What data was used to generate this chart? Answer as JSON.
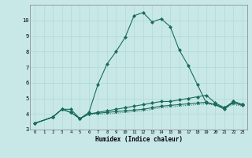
{
  "title": "",
  "xlabel": "Humidex (Indice chaleur)",
  "ylabel": "",
  "bg_color": "#c8e8e8",
  "line_color": "#1a6b5a",
  "grid_color": "#b0d8d8",
  "xlim": [
    -0.5,
    23.5
  ],
  "ylim": [
    3,
    11
  ],
  "yticks": [
    3,
    4,
    5,
    6,
    7,
    8,
    9,
    10
  ],
  "xticks": [
    0,
    1,
    2,
    3,
    4,
    5,
    6,
    7,
    8,
    9,
    10,
    11,
    12,
    13,
    14,
    15,
    16,
    17,
    18,
    19,
    20,
    21,
    22,
    23
  ],
  "series": [
    {
      "x": [
        0,
        2,
        3,
        4,
        5,
        6,
        7,
        8,
        9,
        10,
        11,
        12,
        13,
        14,
        15,
        16,
        17,
        18,
        19,
        20,
        21,
        22,
        23
      ],
      "y": [
        3.4,
        3.8,
        4.3,
        4.3,
        3.7,
        4.1,
        5.9,
        7.2,
        8.0,
        8.9,
        10.3,
        10.5,
        9.9,
        10.1,
        9.6,
        8.1,
        7.1,
        5.9,
        4.7,
        4.6,
        4.3,
        4.8,
        4.6
      ],
      "marker": "D",
      "markersize": 2.0,
      "linewidth": 0.8,
      "linestyle": "-"
    },
    {
      "x": [
        0,
        2,
        3,
        4,
        5,
        6,
        7,
        8,
        9,
        10,
        11,
        12,
        13,
        14,
        15,
        16,
        17,
        18,
        19,
        20,
        21,
        22,
        23
      ],
      "y": [
        3.4,
        3.8,
        4.3,
        4.1,
        3.7,
        4.0,
        4.1,
        4.2,
        4.3,
        4.4,
        4.5,
        4.6,
        4.7,
        4.8,
        4.8,
        4.9,
        5.0,
        5.1,
        5.2,
        4.7,
        4.4,
        4.8,
        4.6
      ],
      "marker": "D",
      "markersize": 2.0,
      "linewidth": 0.8,
      "linestyle": "-"
    },
    {
      "x": [
        0,
        2,
        3,
        4,
        5,
        6,
        7,
        8,
        9,
        10,
        11,
        12,
        13,
        14,
        15,
        16,
        17,
        18,
        19,
        20,
        21,
        22,
        23
      ],
      "y": [
        3.4,
        3.8,
        4.3,
        4.1,
        3.7,
        4.0,
        4.05,
        4.1,
        4.15,
        4.2,
        4.25,
        4.3,
        4.4,
        4.5,
        4.55,
        4.6,
        4.65,
        4.7,
        4.75,
        4.6,
        4.4,
        4.7,
        4.55
      ],
      "marker": "D",
      "markersize": 2.0,
      "linewidth": 0.8,
      "linestyle": "-"
    },
    {
      "x": [
        0,
        2,
        3,
        4,
        5,
        6,
        7,
        8,
        9,
        10,
        11,
        12,
        13,
        14,
        15,
        16,
        17,
        18,
        19,
        20,
        21,
        22,
        23
      ],
      "y": [
        3.4,
        3.8,
        4.3,
        4.1,
        3.7,
        4.0,
        4.0,
        4.0,
        4.05,
        4.1,
        4.15,
        4.2,
        4.3,
        4.4,
        4.45,
        4.5,
        4.55,
        4.6,
        4.65,
        4.55,
        4.35,
        4.6,
        4.5
      ],
      "marker": null,
      "markersize": 0,
      "linewidth": 0.7,
      "linestyle": ":"
    }
  ]
}
